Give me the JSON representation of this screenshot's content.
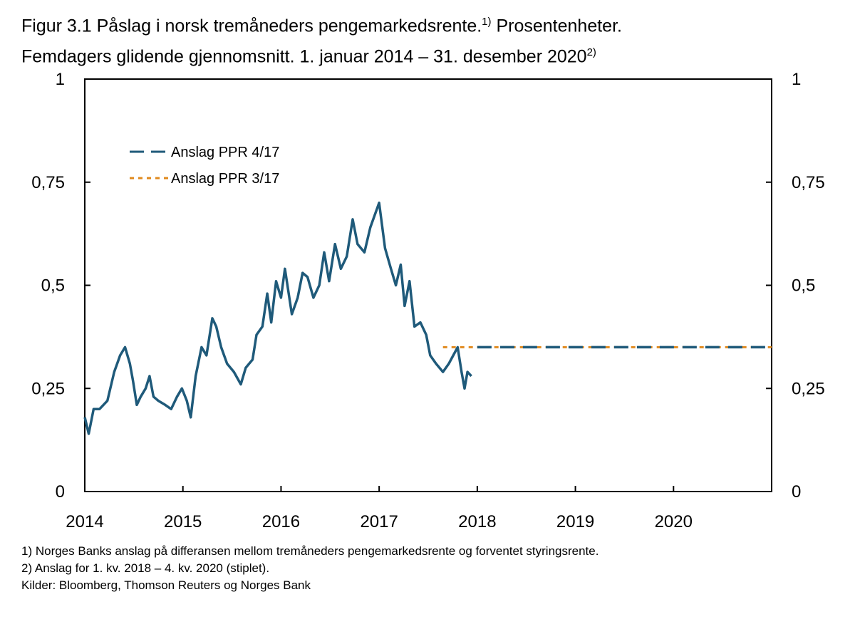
{
  "title": {
    "line1": "Figur 3.1 Påslag i norsk tremåneders pengemarkedsrente.",
    "line1_sup": "1)",
    "line1_end": " Prosentenheter.",
    "line2": "Femdagers glidende gjennomsnitt. 1. januar 2014 – 31. desember 2020",
    "line2_sup": "2)"
  },
  "footnotes": [
    "1) Norges Banks anslag på differansen mellom tremåneders pengemarkedsrente og forventet styringsrente.",
    "2) Anslag for 1. kv. 2018 – 4. kv. 2020 (stiplet).",
    "Kilder: Bloomberg, Thomson Reuters og Norges Bank"
  ],
  "chart_data": {
    "type": "line",
    "xlim": [
      2014,
      2021
    ],
    "ylim": [
      0,
      1
    ],
    "x_ticks": [
      "2014",
      "2015",
      "2016",
      "2017",
      "2018",
      "2019",
      "2020"
    ],
    "y_ticks_left": [
      "0",
      "0,25",
      "0,5",
      "0,75",
      "1"
    ],
    "y_ticks_right": [
      "0",
      "0,25",
      "0,5",
      "0,75",
      "1"
    ],
    "y_tick_values": [
      0,
      0.25,
      0.5,
      0.75,
      1
    ],
    "grid": false,
    "legend_position": "top-left",
    "series": [
      {
        "color": "#1f5a7a",
        "style": "solid",
        "points": [
          [
            2014.0,
            0.18
          ],
          [
            2014.04,
            0.14
          ],
          [
            2014.09,
            0.2
          ],
          [
            2014.15,
            0.2
          ],
          [
            2014.23,
            0.22
          ],
          [
            2014.3,
            0.29
          ],
          [
            2014.36,
            0.33
          ],
          [
            2014.41,
            0.35
          ],
          [
            2014.46,
            0.31
          ],
          [
            2014.49,
            0.27
          ],
          [
            2014.53,
            0.21
          ],
          [
            2014.57,
            0.23
          ],
          [
            2014.62,
            0.25
          ],
          [
            2014.66,
            0.28
          ],
          [
            2014.7,
            0.23
          ],
          [
            2014.75,
            0.22
          ],
          [
            2014.82,
            0.21
          ],
          [
            2014.88,
            0.2
          ],
          [
            2014.94,
            0.23
          ],
          [
            2014.99,
            0.25
          ],
          [
            2015.04,
            0.22
          ],
          [
            2015.08,
            0.18
          ],
          [
            2015.13,
            0.28
          ],
          [
            2015.19,
            0.35
          ],
          [
            2015.24,
            0.33
          ],
          [
            2015.3,
            0.42
          ],
          [
            2015.34,
            0.4
          ],
          [
            2015.39,
            0.35
          ],
          [
            2015.45,
            0.31
          ],
          [
            2015.52,
            0.29
          ],
          [
            2015.59,
            0.26
          ],
          [
            2015.64,
            0.3
          ],
          [
            2015.71,
            0.32
          ],
          [
            2015.75,
            0.38
          ],
          [
            2015.81,
            0.4
          ],
          [
            2015.86,
            0.48
          ],
          [
            2015.9,
            0.41
          ],
          [
            2015.95,
            0.51
          ],
          [
            2016.0,
            0.47
          ],
          [
            2016.04,
            0.54
          ],
          [
            2016.11,
            0.43
          ],
          [
            2016.17,
            0.47
          ],
          [
            2016.22,
            0.53
          ],
          [
            2016.27,
            0.52
          ],
          [
            2016.33,
            0.47
          ],
          [
            2016.39,
            0.5
          ],
          [
            2016.44,
            0.58
          ],
          [
            2016.49,
            0.51
          ],
          [
            2016.55,
            0.6
          ],
          [
            2016.61,
            0.54
          ],
          [
            2016.67,
            0.57
          ],
          [
            2016.73,
            0.66
          ],
          [
            2016.78,
            0.6
          ],
          [
            2016.85,
            0.58
          ],
          [
            2016.91,
            0.64
          ],
          [
            2017.0,
            0.7
          ],
          [
            2017.06,
            0.59
          ],
          [
            2017.12,
            0.54
          ],
          [
            2017.17,
            0.5
          ],
          [
            2017.22,
            0.55
          ],
          [
            2017.26,
            0.45
          ],
          [
            2017.31,
            0.51
          ],
          [
            2017.36,
            0.4
          ],
          [
            2017.42,
            0.41
          ],
          [
            2017.48,
            0.38
          ],
          [
            2017.52,
            0.33
          ],
          [
            2017.58,
            0.31
          ],
          [
            2017.65,
            0.29
          ],
          [
            2017.71,
            0.31
          ],
          [
            2017.8,
            0.35
          ],
          [
            2017.84,
            0.29
          ],
          [
            2017.87,
            0.25
          ],
          [
            2017.9,
            0.29
          ],
          [
            2017.94,
            0.28
          ]
        ]
      },
      {
        "name": "Anslag PPR 3/17",
        "color": "#e08a1e",
        "style": "dotted",
        "points": [
          [
            2017.65,
            0.35
          ],
          [
            2021.0,
            0.35
          ]
        ]
      },
      {
        "name": "Anslag PPR 4/17",
        "color": "#1f5a7a",
        "style": "dashed",
        "points": [
          [
            2018.0,
            0.35
          ],
          [
            2021.0,
            0.35
          ]
        ]
      }
    ],
    "legend": [
      "Anslag PPR 4/17",
      "Anslag PPR 3/17"
    ]
  }
}
